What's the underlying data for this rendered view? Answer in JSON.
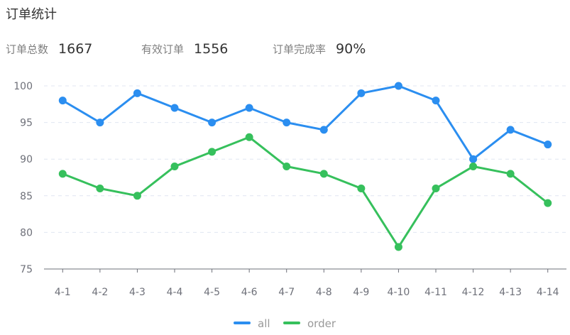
{
  "header": {
    "title": "订单统计"
  },
  "stats": [
    {
      "label": "订单总数",
      "value": "1667"
    },
    {
      "label": "有效订单",
      "value": "1556"
    },
    {
      "label": "订单完成率",
      "value": "90%"
    }
  ],
  "chart_data": {
    "type": "line",
    "categories": [
      "4-1",
      "4-2",
      "4-3",
      "4-4",
      "4-5",
      "4-6",
      "4-7",
      "4-8",
      "4-9",
      "4-10",
      "4-11",
      "4-12",
      "4-13",
      "4-14"
    ],
    "series": [
      {
        "name": "all",
        "color": "#2b8ef0",
        "values": [
          98,
          95,
          99,
          97,
          95,
          97,
          95,
          94,
          99,
          100,
          98,
          90,
          94,
          92
        ]
      },
      {
        "name": "order",
        "color": "#36c05c",
        "values": [
          88,
          86,
          85,
          89,
          91,
          93,
          89,
          88,
          86,
          78,
          86,
          89,
          88,
          84
        ]
      }
    ],
    "ylim": [
      75,
      100
    ],
    "yticks": [
      75,
      80,
      85,
      90,
      95,
      100
    ],
    "grid": true,
    "legend": "bottom-center"
  }
}
